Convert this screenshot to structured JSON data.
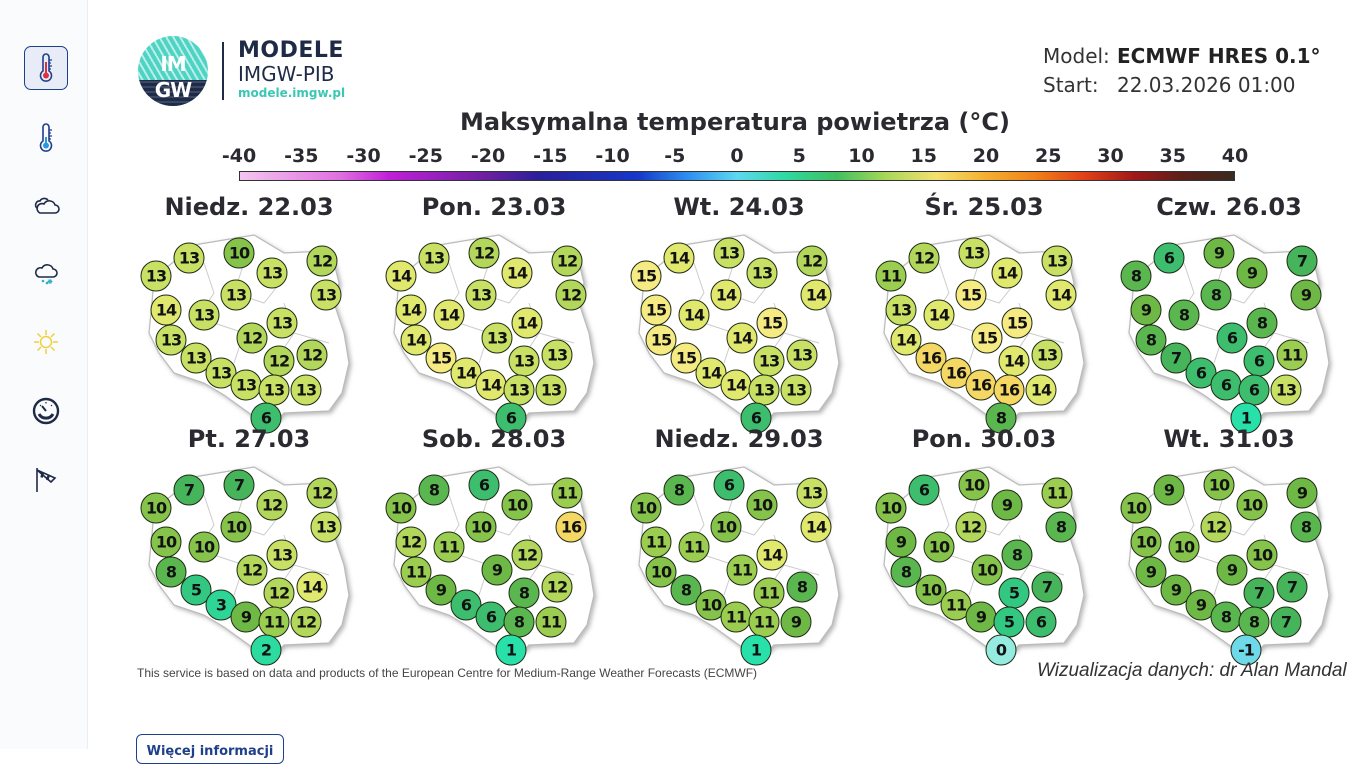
{
  "sidebar": {
    "items": [
      {
        "id": "max-temp",
        "icon": "thermometer-hot-icon",
        "active": true
      },
      {
        "id": "min-temp",
        "icon": "thermometer-cold-icon",
        "active": false
      },
      {
        "id": "clouds",
        "icon": "clouds-icon",
        "active": false
      },
      {
        "id": "snow",
        "icon": "snow-cloud-icon",
        "active": false
      },
      {
        "id": "sun",
        "icon": "sun-icon",
        "active": false
      },
      {
        "id": "pressure",
        "icon": "gauge-icon",
        "active": false
      },
      {
        "id": "wind",
        "icon": "windsock-icon",
        "active": false
      }
    ]
  },
  "logo": {
    "circle_top": "IM",
    "circle_bottom": "GW",
    "line1": "MODELE",
    "line2": "IMGW-PIB",
    "line3": "modele.imgw.pl"
  },
  "model_info": {
    "model_label": "Model:",
    "model_value": "ECMWF HRES 0.1°",
    "start_label": "Start:",
    "start_value": "22.03.2026 01:00"
  },
  "title": "Maksymalna temperatura powietrza (°C)",
  "scale": {
    "ticks": [
      "-40",
      "-35",
      "-30",
      "-25",
      "-20",
      "-15",
      "-10",
      "-5",
      "0",
      "5",
      "10",
      "15",
      "20",
      "25",
      "30",
      "35",
      "40"
    ]
  },
  "days": [
    {
      "label": "Niedz. 22.03",
      "values": [
        13,
        13,
        10,
        13,
        12,
        13,
        14,
        13,
        13,
        13,
        13,
        12,
        12,
        13,
        12,
        13,
        13,
        13,
        13,
        6
      ]
    },
    {
      "label": "Pon. 23.03",
      "values": [
        13,
        14,
        12,
        14,
        12,
        12,
        14,
        13,
        14,
        14,
        14,
        13,
        13,
        15,
        13,
        14,
        14,
        13,
        13,
        6
      ]
    },
    {
      "label": "Wt. 24.03",
      "values": [
        14,
        15,
        13,
        13,
        12,
        14,
        15,
        14,
        14,
        15,
        15,
        14,
        13,
        15,
        13,
        14,
        14,
        13,
        13,
        6
      ]
    },
    {
      "label": "Śr. 25.03",
      "values": [
        12,
        11,
        13,
        14,
        13,
        14,
        13,
        15,
        14,
        14,
        15,
        15,
        13,
        16,
        14,
        16,
        16,
        16,
        14,
        8
      ]
    },
    {
      "label": "Czw. 26.03",
      "values": [
        6,
        8,
        9,
        9,
        7,
        9,
        9,
        8,
        8,
        8,
        8,
        6,
        11,
        7,
        6,
        6,
        6,
        6,
        13,
        1
      ]
    },
    {
      "label": "Pt. 27.03",
      "values": [
        7,
        10,
        7,
        12,
        12,
        13,
        10,
        10,
        10,
        8,
        13,
        12,
        14,
        5,
        12,
        3,
        9,
        11,
        12,
        2
      ]
    },
    {
      "label": "Sob. 28.03",
      "values": [
        8,
        10,
        6,
        10,
        11,
        16,
        12,
        10,
        11,
        11,
        12,
        9,
        12,
        9,
        8,
        6,
        6,
        8,
        11,
        1
      ]
    },
    {
      "label": "Niedz. 29.03",
      "values": [
        8,
        10,
        6,
        10,
        13,
        14,
        11,
        10,
        11,
        10,
        14,
        11,
        8,
        8,
        11,
        10,
        11,
        11,
        9,
        1
      ]
    },
    {
      "label": "Pon. 30.03",
      "values": [
        6,
        10,
        10,
        9,
        11,
        8,
        9,
        12,
        10,
        8,
        8,
        10,
        7,
        10,
        5,
        11,
        9,
        5,
        6,
        0
      ]
    },
    {
      "label": "Wt. 31.03",
      "values": [
        9,
        10,
        10,
        10,
        9,
        8,
        10,
        12,
        10,
        9,
        10,
        9,
        7,
        9,
        7,
        9,
        8,
        8,
        7,
        -1
      ]
    }
  ],
  "footer": {
    "source": "This service is based on data and products of the European Centre for Medium-Range Weather Forecasts (ECMWF)",
    "credit": "Wizualizacja danych: dr Alan Mandal",
    "more_button": "Więcej informacji"
  },
  "colors": {
    "accent": "#1e3f8a",
    "brand_teal": "#3cc7b5"
  }
}
